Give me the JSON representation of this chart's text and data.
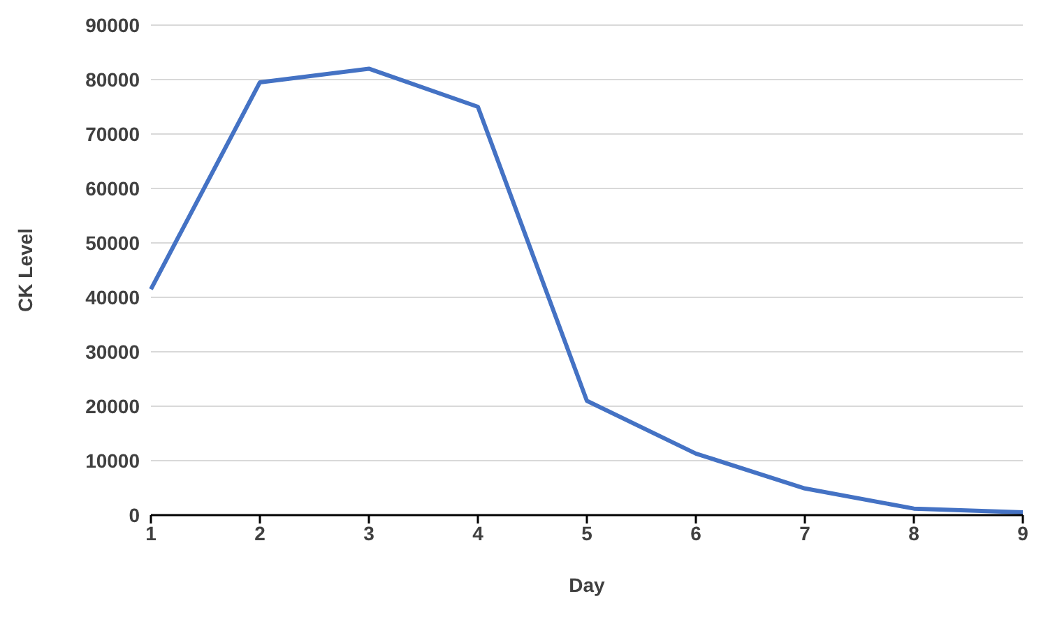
{
  "chart_data": {
    "type": "line",
    "xlabel": "Day",
    "ylabel": "CK Level",
    "categories": [
      "1",
      "2",
      "3",
      "4",
      "5",
      "6",
      "7",
      "8",
      "9"
    ],
    "series": [
      {
        "color": "#4472c4",
        "values": [
          41500,
          79500,
          82000,
          75000,
          21000,
          11300,
          4900,
          1200,
          500
        ]
      }
    ],
    "ylim": [
      0,
      90000
    ],
    "yticks": [
      0,
      10000,
      20000,
      30000,
      40000,
      50000,
      60000,
      70000,
      80000,
      90000
    ],
    "grid": "y",
    "legend": false,
    "marker": "none",
    "line_style": "solid"
  }
}
